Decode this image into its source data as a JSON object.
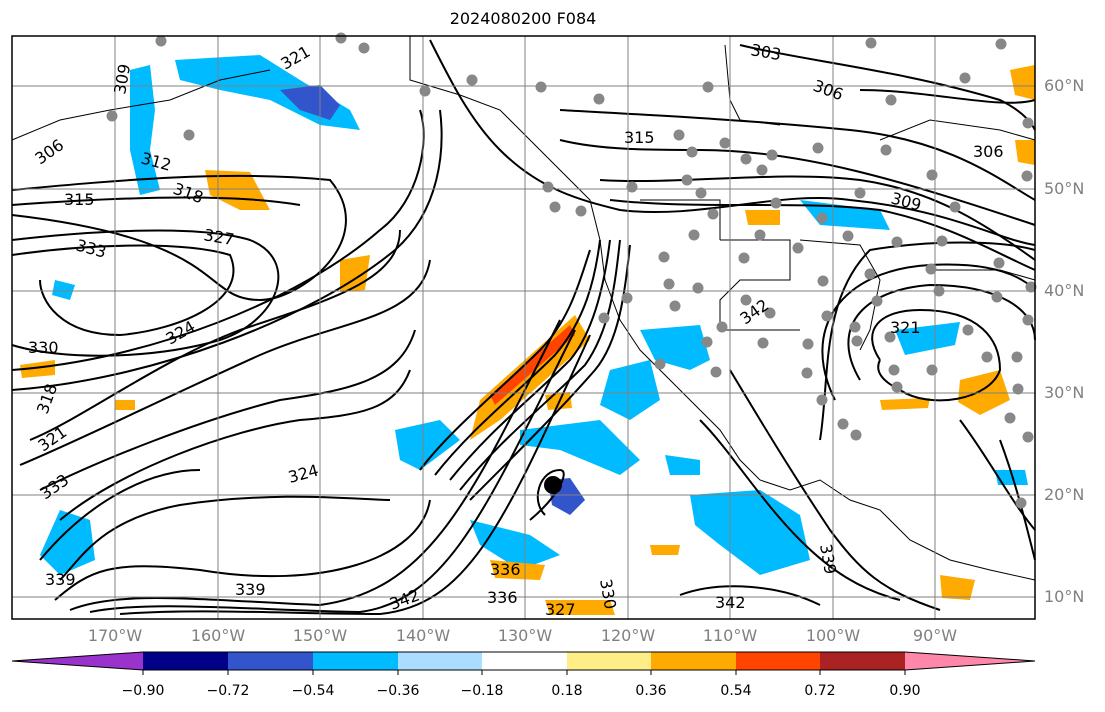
{
  "title": "2024080200 F084",
  "lat_labels": [
    "60°N",
    "50°N",
    "40°N",
    "30°N",
    "20°N",
    "10°N"
  ],
  "lon_labels": [
    "170°W",
    "160°W",
    "150°W",
    "140°W",
    "130°W",
    "120°W",
    "110°W",
    "100°W",
    "90°W"
  ],
  "colorbar": {
    "ticks": [
      "−0.90",
      "−0.72",
      "−0.54",
      "−0.36",
      "−0.18",
      "0.18",
      "0.36",
      "0.54",
      "0.72",
      "0.90"
    ],
    "colors": [
      "#9933cc",
      "#000088",
      "#3355cc",
      "#00bbff",
      "#aaddff",
      "#ffffff",
      "#ffee88",
      "#ffaa00",
      "#ff4400",
      "#aa2222",
      "#ff88aa"
    ]
  },
  "contour_labels": [
    "303",
    "306",
    "306",
    "306",
    "309",
    "309",
    "312",
    "315",
    "315",
    "318",
    "318",
    "321",
    "321",
    "324",
    "324",
    "327",
    "327",
    "330",
    "330",
    "333",
    "333",
    "336",
    "336",
    "339",
    "339",
    "342",
    "342",
    "342",
    "321",
    "339"
  ],
  "marker": "tropical-cyclone-center"
}
